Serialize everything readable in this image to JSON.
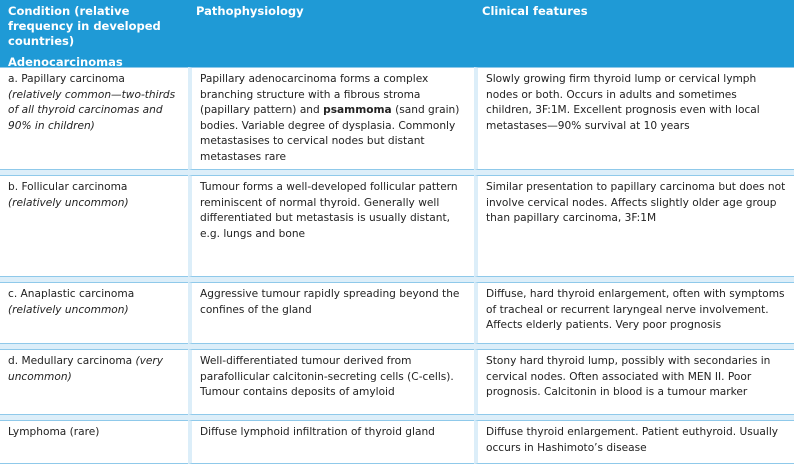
{
  "header": {
    "columns": [
      "Condition (relative frequency in developed countries)",
      "Pathophysiology",
      "Clinical features"
    ],
    "section": "Adenocarcinomas"
  },
  "rows": [
    {
      "cells": [
        [
          {
            "text": "a. Papillary carcinoma "
          },
          {
            "text": "(relatively common—two-thirds of all thyroid carcinomas and 90% in children)",
            "style": "italic"
          }
        ],
        [
          {
            "text": "Papillary adenocarcinoma forms a complex branching structure with a fibrous stroma (papillary pattern) and "
          },
          {
            "text": "psammoma",
            "style": "bold"
          },
          {
            "text": " (sand grain) bodies. Variable degree of dysplasia. Commonly metastasises to cervical nodes but distant metastases rare"
          }
        ],
        [
          {
            "text": "Slowly growing firm thyroid lump or cervical lymph nodes or both. Occurs in adults and sometimes children, 3F:1M. Excellent prognosis even with local metastases—90% survival at 10 years"
          }
        ]
      ]
    },
    {
      "cells": [
        [
          {
            "text": "b. Follicular carcinoma "
          },
          {
            "text": "(relatively uncommon)",
            "style": "italic"
          }
        ],
        [
          {
            "text": "Tumour forms a well-developed follicular pattern reminiscent of normal thyroid. Generally well differentiated but metastasis is usually distant, e.g. lungs and bone"
          }
        ],
        [
          {
            "text": "Similar presentation to papillary carcinoma but does not involve cervical nodes. Affects slightly older age group than papillary carcinoma, 3F:1M"
          }
        ]
      ]
    },
    {
      "cells": [
        [
          {
            "text": "c. Anaplastic carcinoma "
          },
          {
            "text": "(relatively uncommon)",
            "style": "italic"
          }
        ],
        [
          {
            "text": "Aggressive tumour rapidly spreading beyond the confines of the gland"
          }
        ],
        [
          {
            "text": "Diffuse, hard thyroid enlargement, often with symptoms of tracheal or recurrent laryngeal nerve involvement. Affects elderly patients. Very poor prognosis"
          }
        ]
      ]
    },
    {
      "cells": [
        [
          {
            "text": "d. Medullary carcinoma "
          },
          {
            "text": "(very uncommon)",
            "style": "italic"
          }
        ],
        [
          {
            "text": "Well-differentiated tumour derived from parafollicular calcitonin-secreting cells (C-cells). Tumour contains deposits of amyloid"
          }
        ],
        [
          {
            "text": "Stony hard thyroid lump, possibly with secondaries in cervical nodes. Often associated with MEN II. Poor prognosis. Calcitonin in blood is a tumour marker"
          }
        ]
      ]
    },
    {
      "cells": [
        [
          {
            "text": "Lymphoma (rare)"
          }
        ],
        [
          {
            "text": "Diffuse lymphoid infiltration of thyroid gland"
          }
        ],
        [
          {
            "text": "Diffuse thyroid enlargement. Patient euthyroid. Usually occurs in Hashimoto’s disease"
          }
        ]
      ]
    }
  ]
}
